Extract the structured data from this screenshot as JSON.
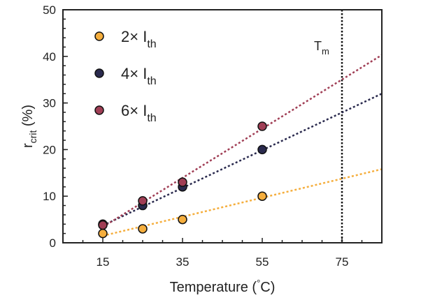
{
  "chart_data": {
    "type": "scatter",
    "title": "",
    "xlabel": "Temperature (",
    "xlabel_unit_sup": "°",
    "xlabel_unit": "C)",
    "ylabel_main": "r",
    "ylabel_sub": "crit",
    "ylabel_suffix": " (%)",
    "xlim": [
      5,
      85
    ],
    "ylim": [
      0,
      50
    ],
    "xticks": [
      15,
      35,
      55,
      75
    ],
    "xminor_step": 5,
    "yticks": [
      0,
      10,
      20,
      30,
      40,
      50
    ],
    "yminor_step": 2,
    "legend_position": "top-left",
    "series": [
      {
        "name": "2× I",
        "sub": "th",
        "color": "#F5AE3D",
        "x": [
          15,
          25,
          35,
          55
        ],
        "y": [
          2,
          3,
          5,
          10
        ],
        "fit": [
          [
            15,
            1.5
          ],
          [
            85,
            15.8
          ]
        ]
      },
      {
        "name": "4× I",
        "sub": "th",
        "color": "#2A2A4E",
        "x": [
          15,
          25,
          35,
          55
        ],
        "y": [
          4,
          8,
          12,
          20
        ],
        "fit": [
          [
            15,
            3.7
          ],
          [
            85,
            32
          ]
        ]
      },
      {
        "name": "6× I",
        "sub": "th",
        "color": "#A03E55",
        "x": [
          15,
          25,
          35,
          55
        ],
        "y": [
          3.8,
          9,
          13,
          25
        ],
        "fit": [
          [
            15,
            3.4
          ],
          [
            85,
            40.3
          ]
        ]
      }
    ],
    "annotations": [
      {
        "text": "T",
        "sub": "m",
        "type": "vline",
        "x": 75
      }
    ]
  }
}
